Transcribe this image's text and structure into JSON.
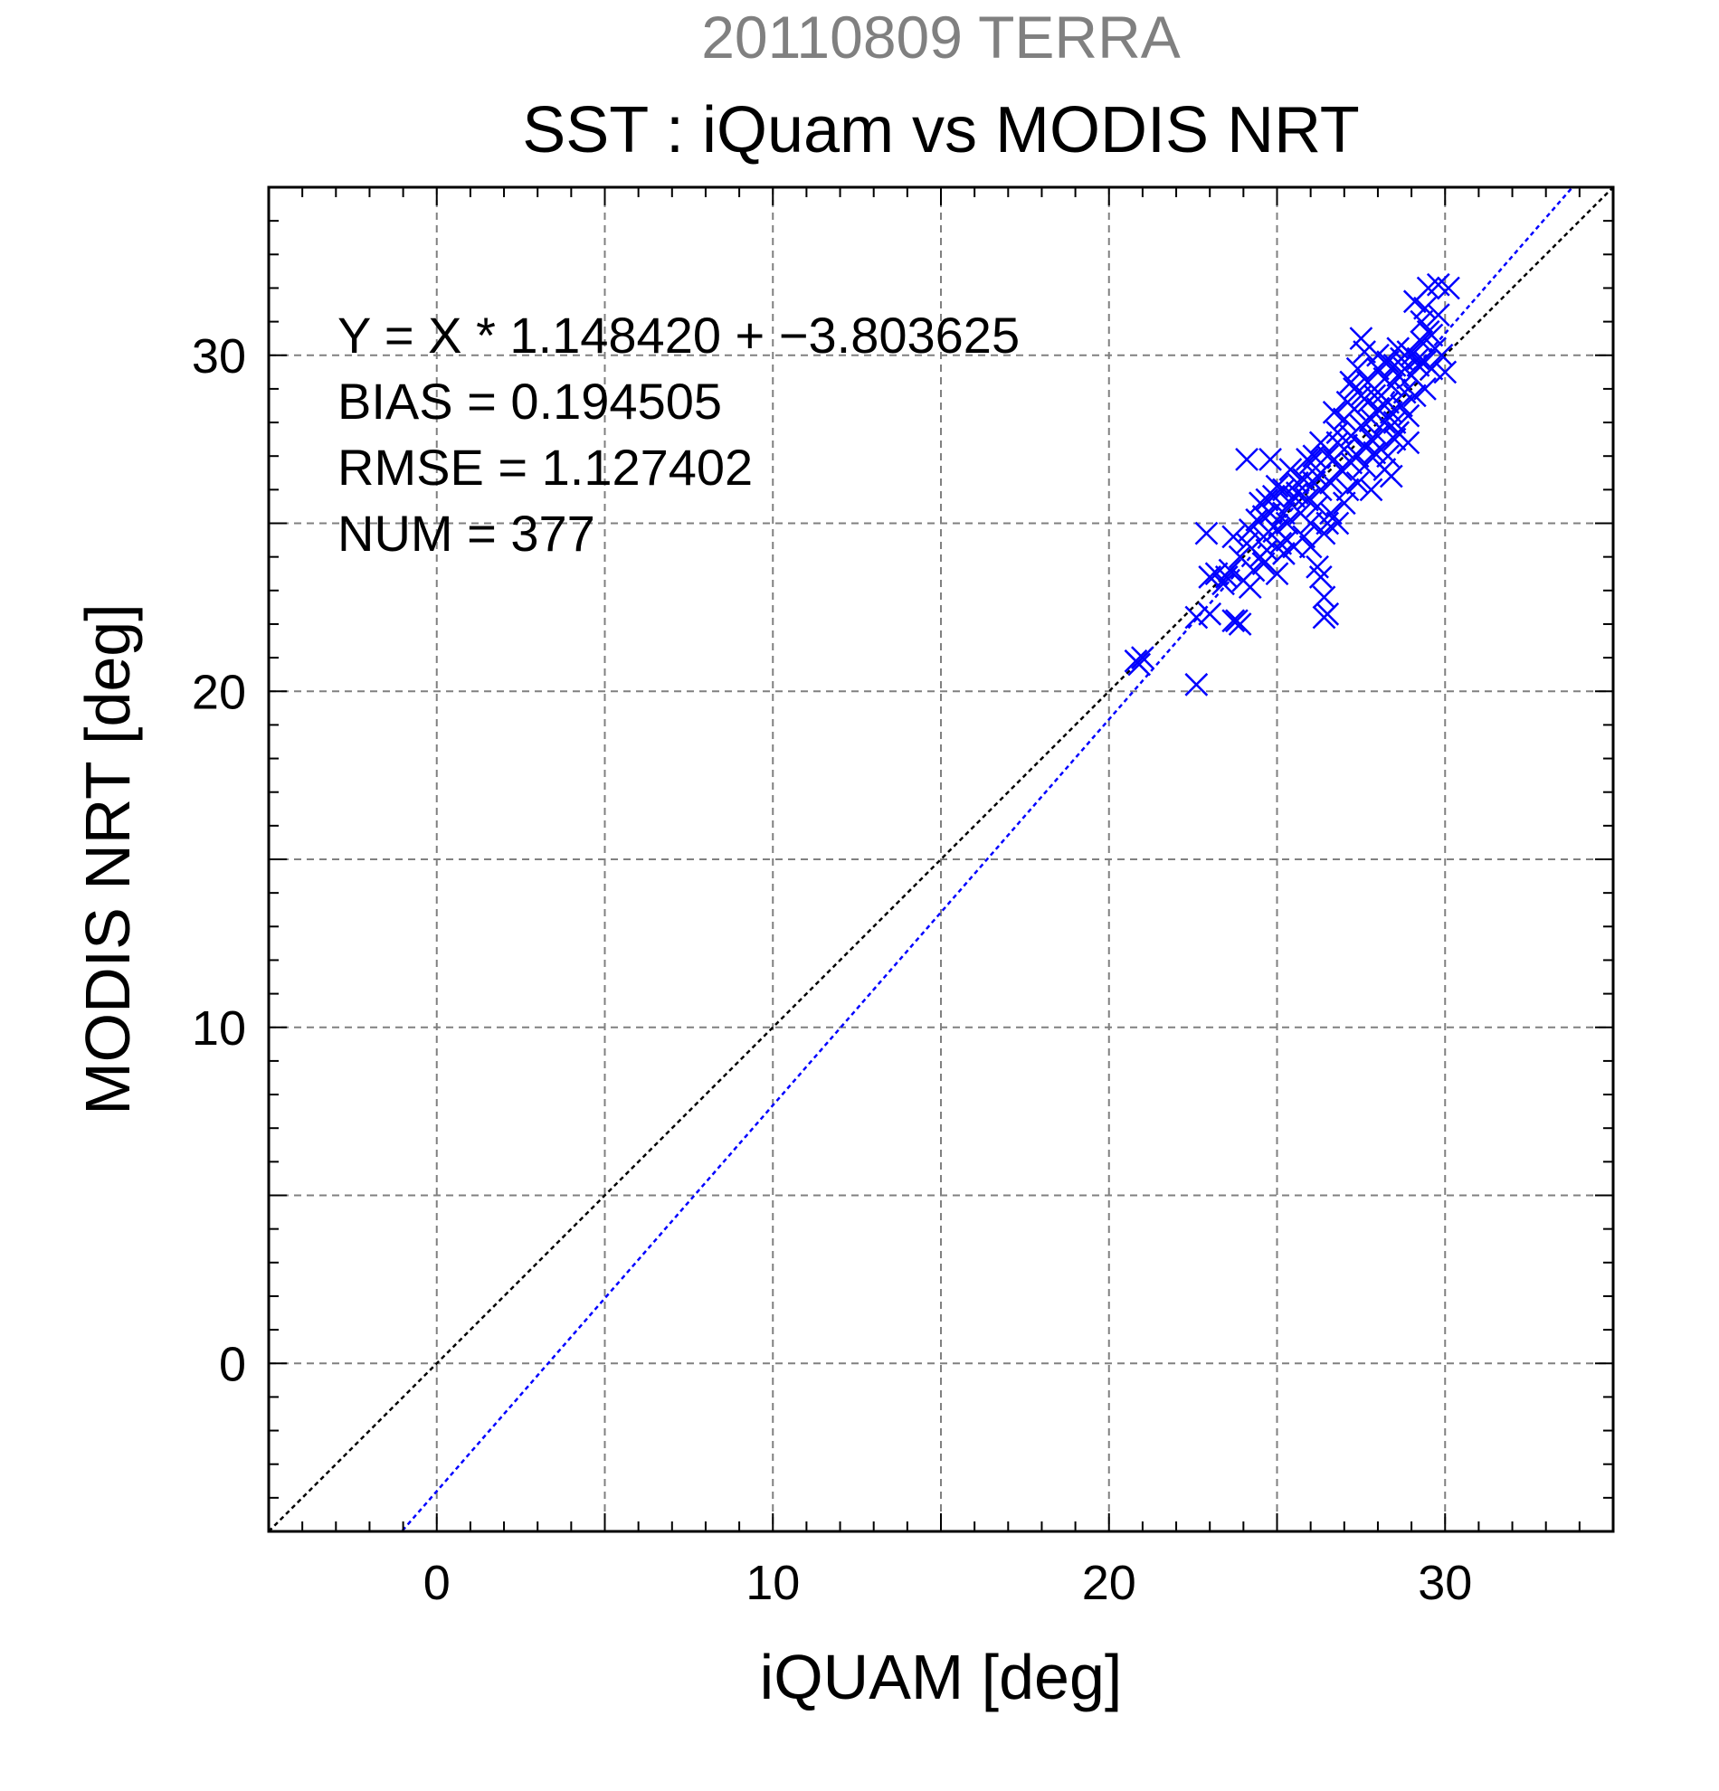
{
  "chart_data": {
    "type": "scatter",
    "title": "20110809 TERRA",
    "subtitle": "SST : iQuam vs MODIS NRT",
    "xlabel": "iQUAM [deg]",
    "ylabel": "MODIS NRT [deg]",
    "xlim": [
      -5,
      35
    ],
    "ylim": [
      -5,
      35
    ],
    "x_ticks": [
      0,
      10,
      20,
      30
    ],
    "y_ticks": [
      0,
      10,
      20,
      30
    ],
    "x_minor_step": 1,
    "y_minor_step": 1,
    "grid_step": 5,
    "grid": true,
    "annotations": [
      "Y = X * 1.148420 + −3.803625",
      "BIAS = 0.194505",
      "RMSE = 1.127402",
      "NUM = 377"
    ],
    "fit": {
      "slope": 1.14842,
      "intercept": -3.803625
    },
    "reference_line": "y = x",
    "colors": {
      "title": "#808080",
      "text": "#000000",
      "points": "#0000ff",
      "fit_line": "#0000ff",
      "identity_line": "#000000",
      "grid": "#808080"
    },
    "marker": "x",
    "series": [
      {
        "points": [
          [
            20.8,
            20.9
          ],
          [
            21.0,
            21.0
          ],
          [
            20.9,
            20.8
          ],
          [
            22.6,
            20.2
          ],
          [
            22.6,
            22.2
          ],
          [
            23.0,
            22.3
          ],
          [
            22.9,
            24.7
          ],
          [
            23.0,
            23.4
          ],
          [
            23.2,
            23.5
          ],
          [
            23.4,
            23.2
          ],
          [
            23.6,
            23.6
          ],
          [
            23.7,
            22.1
          ],
          [
            23.8,
            22.1
          ],
          [
            23.9,
            22.0
          ],
          [
            23.9,
            24.0
          ],
          [
            24.0,
            23.3
          ],
          [
            24.1,
            24.4
          ],
          [
            24.2,
            24.8
          ],
          [
            24.2,
            23.1
          ],
          [
            24.1,
            26.9
          ],
          [
            24.4,
            25.1
          ],
          [
            24.5,
            25.6
          ],
          [
            24.6,
            24.6
          ],
          [
            24.6,
            23.8
          ],
          [
            24.7,
            24.2
          ],
          [
            24.8,
            25.3
          ],
          [
            24.8,
            26.9
          ],
          [
            24.9,
            25.8
          ],
          [
            25.0,
            24.8
          ],
          [
            25.0,
            23.5
          ],
          [
            25.1,
            24.4
          ],
          [
            25.2,
            25.3
          ],
          [
            25.2,
            26.0
          ],
          [
            25.3,
            25.0
          ],
          [
            25.3,
            24.5
          ],
          [
            25.4,
            25.6
          ],
          [
            25.5,
            25.8
          ],
          [
            25.5,
            24.3
          ],
          [
            25.6,
            26.2
          ],
          [
            25.7,
            25.3
          ],
          [
            25.8,
            26.3
          ],
          [
            25.9,
            25.7
          ],
          [
            26.0,
            26.8
          ],
          [
            26.0,
            24.3
          ],
          [
            26.1,
            27.0
          ],
          [
            26.2,
            26.4
          ],
          [
            26.2,
            25.5
          ],
          [
            26.2,
            23.7
          ],
          [
            26.3,
            23.4
          ],
          [
            26.3,
            26.0
          ],
          [
            26.4,
            22.8
          ],
          [
            26.4,
            22.2
          ],
          [
            26.5,
            22.3
          ],
          [
            26.5,
            27.0
          ],
          [
            26.6,
            26.2
          ],
          [
            26.6,
            25.3
          ],
          [
            26.7,
            26.9
          ],
          [
            26.8,
            27.4
          ],
          [
            26.8,
            25.0
          ],
          [
            26.9,
            26.6
          ],
          [
            27.0,
            27.2
          ],
          [
            27.0,
            28.1
          ],
          [
            27.1,
            26.0
          ],
          [
            27.2,
            27.6
          ],
          [
            27.2,
            26.8
          ],
          [
            27.3,
            28.4
          ],
          [
            27.4,
            27.0
          ],
          [
            27.4,
            26.2
          ],
          [
            27.5,
            28.8
          ],
          [
            27.5,
            27.9
          ],
          [
            27.6,
            27.3
          ],
          [
            27.6,
            26.7
          ],
          [
            27.7,
            28.6
          ],
          [
            27.7,
            29.2
          ],
          [
            27.8,
            28.1
          ],
          [
            27.8,
            27.5
          ],
          [
            27.8,
            26.0
          ],
          [
            27.9,
            29.0
          ],
          [
            28.0,
            28.4
          ],
          [
            28.0,
            27.6
          ],
          [
            28.0,
            29.6
          ],
          [
            28.1,
            28.8
          ],
          [
            28.1,
            27.2
          ],
          [
            28.2,
            29.3
          ],
          [
            28.2,
            28.0
          ],
          [
            28.3,
            28.6
          ],
          [
            28.3,
            29.8
          ],
          [
            28.3,
            27.0
          ],
          [
            28.4,
            28.3
          ],
          [
            28.4,
            29.1
          ],
          [
            28.5,
            29.7
          ],
          [
            28.5,
            28.0
          ],
          [
            28.6,
            29.4
          ],
          [
            28.6,
            27.7
          ],
          [
            28.7,
            29.9
          ],
          [
            28.7,
            28.5
          ],
          [
            28.8,
            28.9
          ],
          [
            28.8,
            29.6
          ],
          [
            28.9,
            30.1
          ],
          [
            28.9,
            28.2
          ],
          [
            29.0,
            29.4
          ],
          [
            29.0,
            30.0
          ],
          [
            29.1,
            28.8
          ],
          [
            29.2,
            29.7
          ],
          [
            29.3,
            30.4
          ],
          [
            29.3,
            31.0
          ],
          [
            29.4,
            29.8
          ],
          [
            29.4,
            31.4
          ],
          [
            29.5,
            30.7
          ],
          [
            29.5,
            32.0
          ],
          [
            29.6,
            29.6
          ],
          [
            29.7,
            30.2
          ],
          [
            29.8,
            31.2
          ],
          [
            29.8,
            32.1
          ],
          [
            29.9,
            30.0
          ],
          [
            30.0,
            29.5
          ],
          [
            30.1,
            32.0
          ],
          [
            28.4,
            26.4
          ],
          [
            27.6,
            30.1
          ],
          [
            27.4,
            29.6
          ],
          [
            26.1,
            26.2
          ],
          [
            25.9,
            26.9
          ],
          [
            25.6,
            25.9
          ],
          [
            25.2,
            24.1
          ],
          [
            24.9,
            24.9
          ],
          [
            24.7,
            25.7
          ],
          [
            24.5,
            24.0
          ],
          [
            24.3,
            23.6
          ],
          [
            23.7,
            24.6
          ],
          [
            23.5,
            23.4
          ],
          [
            26.8,
            27.7
          ],
          [
            27.1,
            28.6
          ],
          [
            27.3,
            29.0
          ],
          [
            28.2,
            26.6
          ],
          [
            28.9,
            27.4
          ],
          [
            29.2,
            29.9
          ],
          [
            29.6,
            30.6
          ],
          [
            27.0,
            25.6
          ],
          [
            26.5,
            25.0
          ],
          [
            25.4,
            26.6
          ],
          [
            25.0,
            26.1
          ],
          [
            24.6,
            25.2
          ],
          [
            26.3,
            27.4
          ],
          [
            27.9,
            28.8
          ],
          [
            28.6,
            30.2
          ],
          [
            29.1,
            31.6
          ],
          [
            27.5,
            30.5
          ],
          [
            27.2,
            29.2
          ],
          [
            26.7,
            28.3
          ],
          [
            28.0,
            30.0
          ],
          [
            26.4,
            24.7
          ],
          [
            26.0,
            25.0
          ],
          [
            25.8,
            24.6
          ],
          [
            27.9,
            27.1
          ],
          [
            28.5,
            27.5
          ],
          [
            29.4,
            29.0
          ]
        ]
      }
    ]
  }
}
